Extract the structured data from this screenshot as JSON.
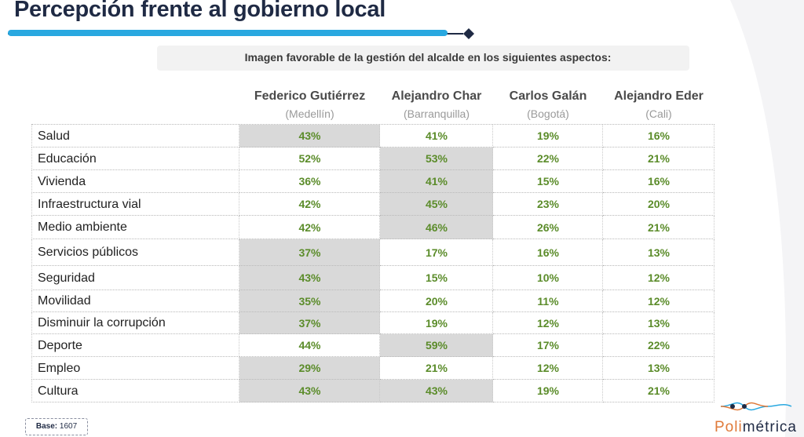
{
  "header": {
    "title": "Percepción frente al gobierno local",
    "subtitle": "Imagen favorable de la gestión del alcalde en los siguientes aspectos:"
  },
  "table": {
    "columns": [
      {
        "name": "Federico Gutiérrez",
        "city": "(Medellín)"
      },
      {
        "name": "Alejandro Char",
        "city": "(Barranquilla)"
      },
      {
        "name": "Carlos Galán",
        "city": "(Bogotá)"
      },
      {
        "name": "Alejandro Eder",
        "city": "(Cali)"
      }
    ],
    "rows": [
      {
        "label": "Salud",
        "values": [
          "43%",
          "41%",
          "19%",
          "16%"
        ],
        "highlighted": [
          0
        ]
      },
      {
        "label": "Educación",
        "values": [
          "52%",
          "53%",
          "22%",
          "21%"
        ],
        "highlighted": [
          1
        ]
      },
      {
        "label": "Vivienda",
        "values": [
          "36%",
          "41%",
          "15%",
          "16%"
        ],
        "highlighted": [
          1
        ]
      },
      {
        "label": "Infraestructura vial",
        "values": [
          "42%",
          "45%",
          "23%",
          "20%"
        ],
        "highlighted": [
          1
        ]
      },
      {
        "label": "Medio ambiente",
        "values": [
          "42%",
          "46%",
          "26%",
          "21%"
        ],
        "highlighted": [
          1
        ]
      },
      {
        "label": "Servicios públicos",
        "values": [
          "37%",
          "17%",
          "16%",
          "13%"
        ],
        "highlighted": [
          0
        ]
      },
      {
        "label": "Seguridad",
        "values": [
          "43%",
          "15%",
          "10%",
          "12%"
        ],
        "highlighted": [
          0
        ]
      },
      {
        "label": "Movilidad",
        "values": [
          "35%",
          "20%",
          "11%",
          "12%"
        ],
        "highlighted": [
          0
        ]
      },
      {
        "label": "Disminuir la corrupción",
        "values": [
          "37%",
          "19%",
          "12%",
          "13%"
        ],
        "highlighted": [
          0
        ]
      },
      {
        "label": "Deporte",
        "values": [
          "44%",
          "59%",
          "17%",
          "22%"
        ],
        "highlighted": [
          1
        ]
      },
      {
        "label": "Empleo",
        "values": [
          "29%",
          "21%",
          "12%",
          "13%"
        ],
        "highlighted": [
          0
        ]
      },
      {
        "label": "Cultura",
        "values": [
          "43%",
          "43%",
          "19%",
          "21%"
        ],
        "highlighted": [
          0,
          1
        ]
      }
    ]
  },
  "footer": {
    "base_label": "Base:",
    "base_value": "1607",
    "logo": [
      "Poli",
      "métrica"
    ]
  }
}
